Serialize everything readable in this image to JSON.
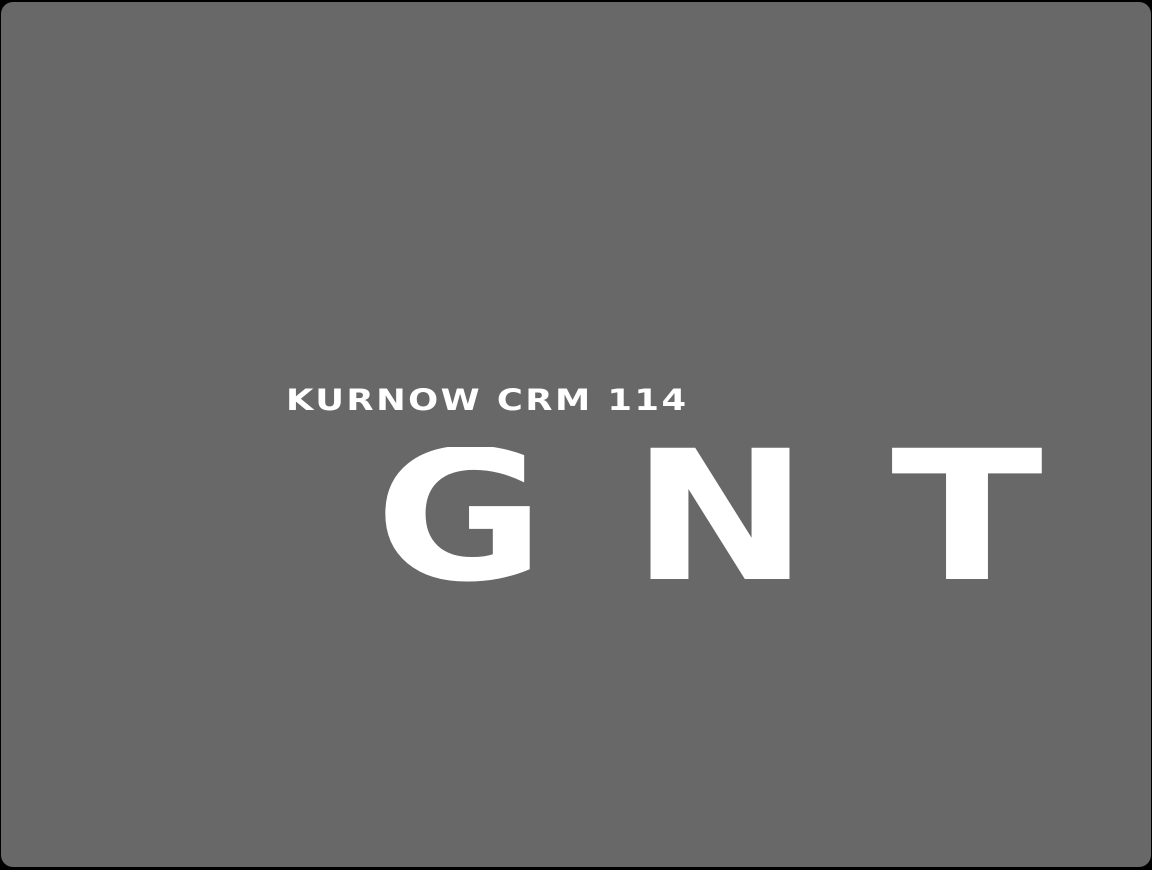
{
  "splash": {
    "model_name": "KURNOW CRM 114",
    "logo": {
      "letters": [
        "G",
        "N",
        "T"
      ],
      "text": "GNT"
    }
  },
  "colors": {
    "frame": "#000000",
    "screen_background": "#686868",
    "text": "#ffffff"
  }
}
